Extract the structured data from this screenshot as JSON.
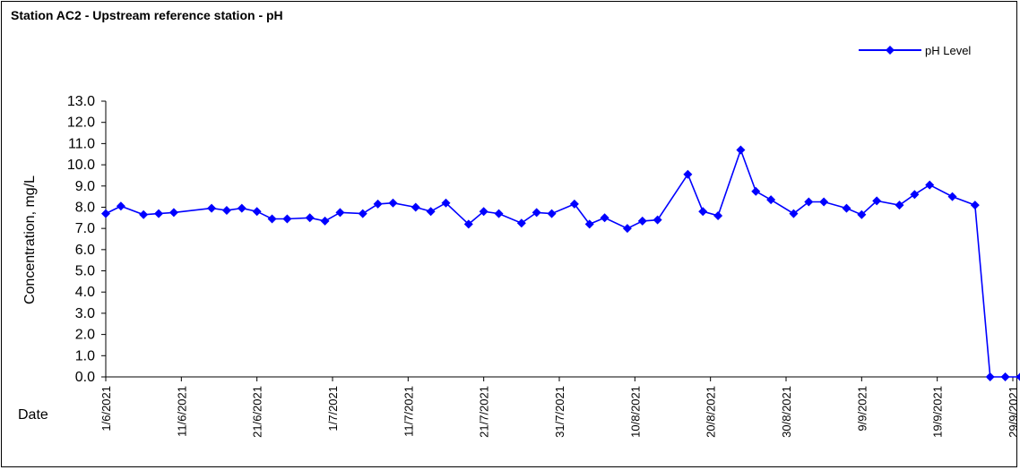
{
  "chart_data": {
    "type": "line",
    "title": "Station AC2 - Upstream reference station - pH",
    "xlabel": "Date",
    "ylabel": "Concentration, mg/L",
    "ylim": [
      0,
      13
    ],
    "yticks": [
      "0.0",
      "1.0",
      "2.0",
      "3.0",
      "4.0",
      "5.0",
      "6.0",
      "7.0",
      "8.0",
      "9.0",
      "10.0",
      "11.0",
      "12.0",
      "13.0"
    ],
    "xlim": [
      "2021-06-01",
      "2021-09-29"
    ],
    "xticks": [
      "1/6/2021",
      "11/6/2021",
      "21/6/2021",
      "1/7/2021",
      "11/7/2021",
      "21/7/2021",
      "31/7/2021",
      "10/8/2021",
      "20/8/2021",
      "30/8/2021",
      "9/9/2021",
      "19/9/2021",
      "29/9/2021"
    ],
    "legend_position": "top-right",
    "line_color": "#0000ff",
    "series": [
      {
        "name": "pH Level",
        "points": [
          [
            "2021-06-01",
            7.7
          ],
          [
            "2021-06-03",
            8.05
          ],
          [
            "2021-06-06",
            7.65
          ],
          [
            "2021-06-08",
            7.7
          ],
          [
            "2021-06-10",
            7.75
          ],
          [
            "2021-06-15",
            7.95
          ],
          [
            "2021-06-17",
            7.85
          ],
          [
            "2021-06-19",
            7.95
          ],
          [
            "2021-06-21",
            7.8
          ],
          [
            "2021-06-23",
            7.45
          ],
          [
            "2021-06-25",
            7.45
          ],
          [
            "2021-06-28",
            7.5
          ],
          [
            "2021-06-30",
            7.35
          ],
          [
            "2021-07-02",
            7.75
          ],
          [
            "2021-07-05",
            7.7
          ],
          [
            "2021-07-07",
            8.15
          ],
          [
            "2021-07-09",
            8.2
          ],
          [
            "2021-07-12",
            8.0
          ],
          [
            "2021-07-14",
            7.8
          ],
          [
            "2021-07-16",
            8.2
          ],
          [
            "2021-07-19",
            7.2
          ],
          [
            "2021-07-21",
            7.8
          ],
          [
            "2021-07-23",
            7.7
          ],
          [
            "2021-07-26",
            7.25
          ],
          [
            "2021-07-28",
            7.75
          ],
          [
            "2021-07-30",
            7.7
          ],
          [
            "2021-08-02",
            8.15
          ],
          [
            "2021-08-04",
            7.2
          ],
          [
            "2021-08-06",
            7.5
          ],
          [
            "2021-08-09",
            7.0
          ],
          [
            "2021-08-11",
            7.35
          ],
          [
            "2021-08-13",
            7.4
          ],
          [
            "2021-08-17",
            9.55
          ],
          [
            "2021-08-19",
            7.8
          ],
          [
            "2021-08-21",
            7.6
          ],
          [
            "2021-08-24",
            10.7
          ],
          [
            "2021-08-26",
            8.75
          ],
          [
            "2021-08-28",
            8.35
          ],
          [
            "2021-08-31",
            7.7
          ],
          [
            "2021-09-02",
            8.25
          ],
          [
            "2021-09-04",
            8.25
          ],
          [
            "2021-09-07",
            7.95
          ],
          [
            "2021-09-09",
            7.65
          ],
          [
            "2021-09-11",
            8.3
          ],
          [
            "2021-09-14",
            8.1
          ],
          [
            "2021-09-16",
            8.6
          ],
          [
            "2021-09-18",
            9.05
          ],
          [
            "2021-09-21",
            8.5
          ],
          [
            "2021-09-24",
            8.1
          ],
          [
            "2021-09-26",
            0.0
          ],
          [
            "2021-09-28",
            0.0
          ],
          [
            "2021-09-30",
            0.0
          ]
        ]
      }
    ]
  }
}
